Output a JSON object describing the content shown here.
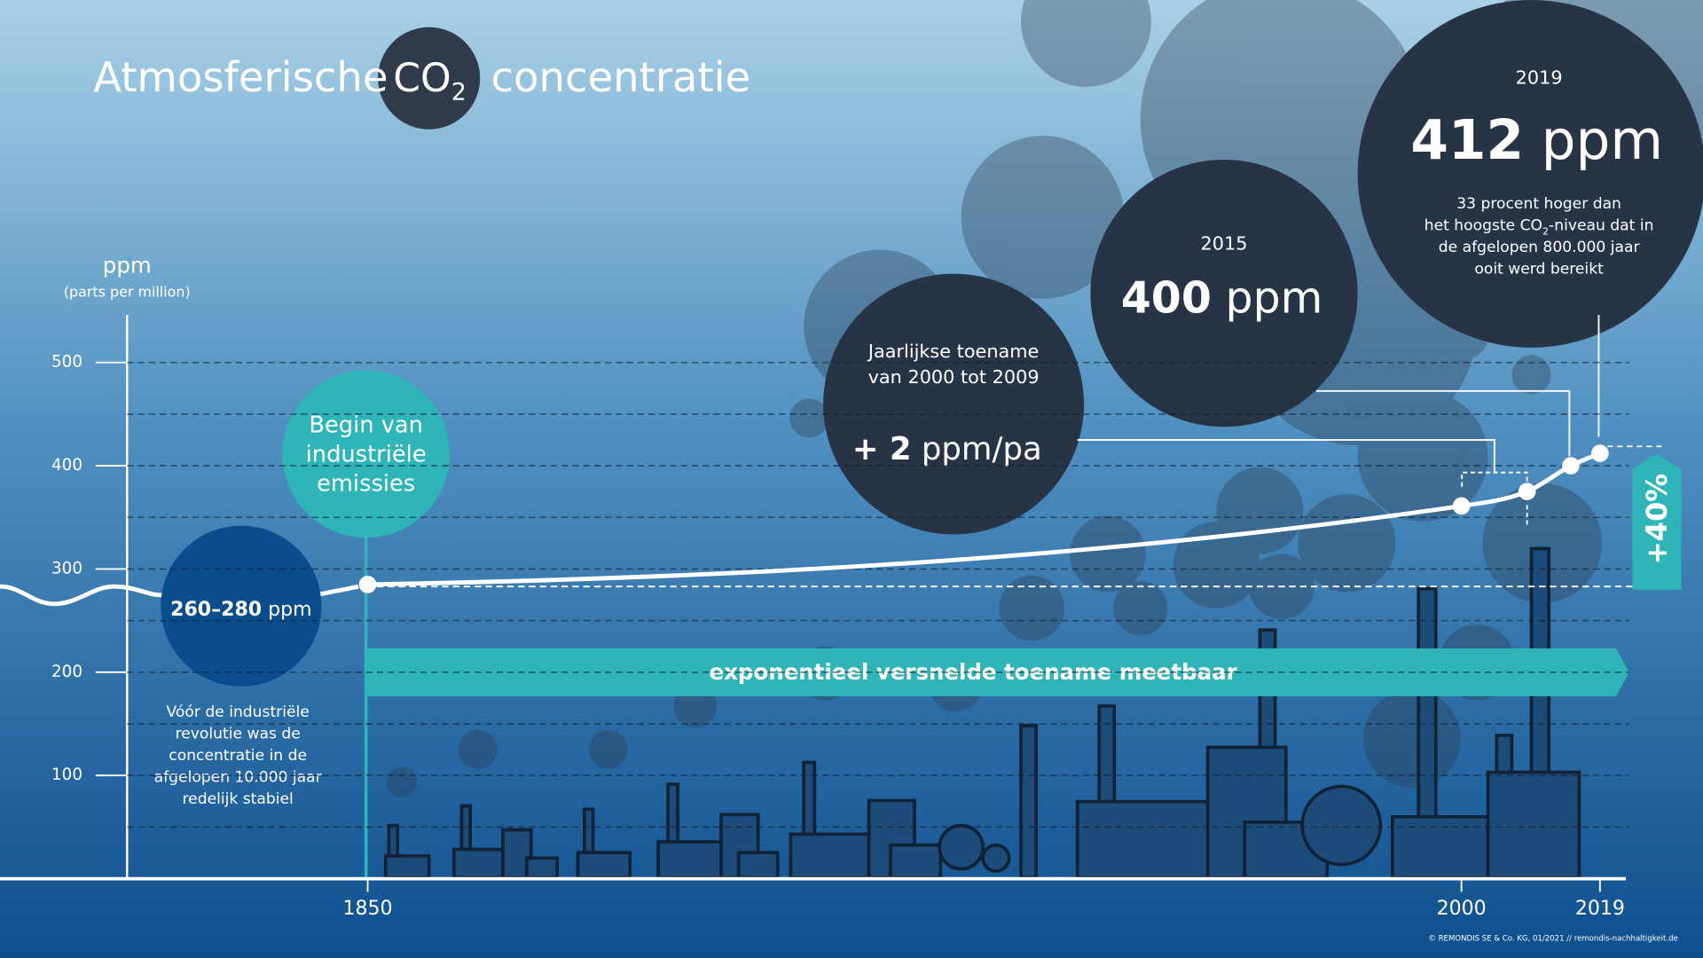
{
  "chart_data": {
    "type": "line",
    "title": {
      "pre": "Atmosferische",
      "co": "CO",
      "sub": "2",
      "post": "concentratie"
    },
    "y_label": "ppm",
    "y_sublabel": "(parts per million)",
    "x": [
      1850,
      2000,
      2009,
      2015,
      2019
    ],
    "series": [
      {
        "color": "#ffffff",
        "values": [
          285,
          361,
          375,
          400,
          412
        ]
      }
    ],
    "xlim": [
      1817,
      2023
    ],
    "xticks": [
      1850,
      2000,
      2019
    ],
    "ylim": [
      0,
      546
    ],
    "yticks": [
      100,
      200,
      300,
      400,
      500
    ],
    "minor_yticks": [
      50,
      150,
      250,
      350,
      450
    ],
    "grid": true,
    "annotations": {
      "industrial_start": [
        "Begin van",
        "industriële",
        "emissies"
      ],
      "preindustrial": {
        "range": "260–280",
        "unit": "ppm",
        "note": [
          "Vóór de industriële",
          "revolutie was de",
          "concentratie in de",
          "afgelopen 10.000 jaar",
          "redelijk stabiel"
        ]
      },
      "banner": "exponentieel versnelde toename meetbaar",
      "annual": {
        "text": [
          "Jaarlijkse toename",
          "van 2000 tot 2009"
        ],
        "value": "+ 2",
        "unit": "ppm/pa"
      },
      "y2015": {
        "year": "2015",
        "value": "400",
        "unit": "ppm"
      },
      "y2019": {
        "year": "2019",
        "value": "412",
        "unit": "ppm",
        "note": [
          "33 procent hoger dan",
          {
            "pre": "het hoogste CO",
            "sub": "2",
            "post": "-niveau dat in"
          },
          "de afgelopen 800.000 jaar",
          "ooit werd bereikt"
        ]
      },
      "increase": "+40%"
    },
    "footer": "© REMONDIS SE & Co. KG, 01/2021 // remondis-nachhaltigkeit.de"
  }
}
